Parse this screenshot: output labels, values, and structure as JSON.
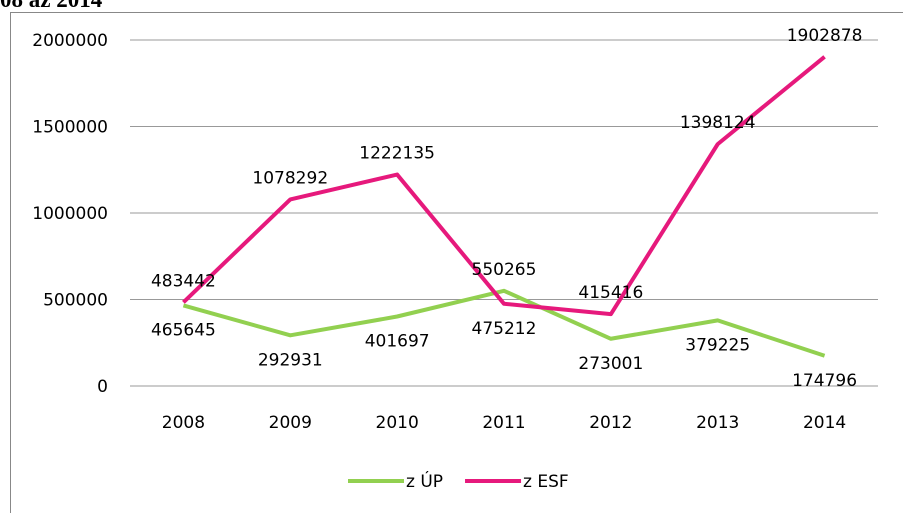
{
  "chart_data": {
    "type": "line",
    "title": "08 až 2014",
    "categories": [
      "2008",
      "2009",
      "2010",
      "2011",
      "2012",
      "2013",
      "2014"
    ],
    "series": [
      {
        "name": "z ÚP",
        "color": "#92d050",
        "values": [
          465645,
          292931,
          401697,
          550265,
          273001,
          379225,
          174796
        ]
      },
      {
        "name": "z ESF",
        "color": "#e6197c",
        "values": [
          483442,
          1078292,
          1222135,
          475212,
          415416,
          1398124,
          1902878
        ]
      }
    ],
    "ylim": [
      0,
      2000000
    ],
    "yticks": [
      0,
      500000,
      1000000,
      1500000,
      2000000
    ],
    "grid": true,
    "legend": "bottom"
  }
}
